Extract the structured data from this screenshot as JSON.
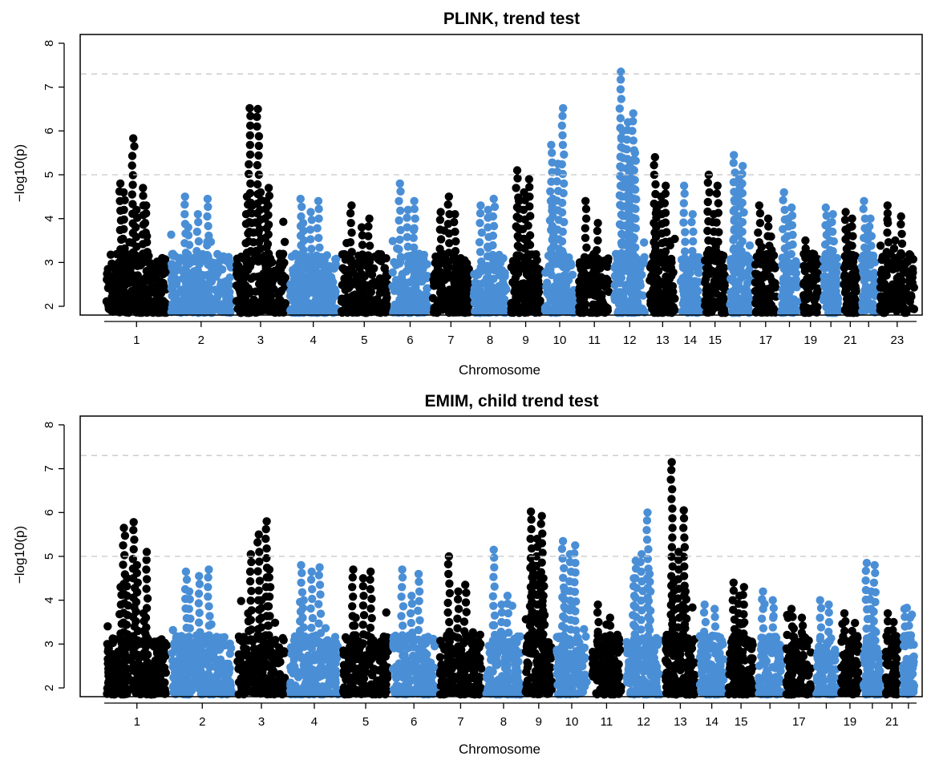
{
  "colors": {
    "odd_chromosome": "#000000",
    "even_chromosome": "#4a8fd6",
    "reference_line": "#c8c8c8"
  },
  "chart_data": [
    {
      "type": "scatter",
      "title": "PLINK, trend test",
      "xlabel": "Chromosome",
      "ylabel": "−log10(p)",
      "ylim": [
        1.8,
        8.2
      ],
      "yticks": [
        2,
        3,
        4,
        5,
        6,
        7,
        8
      ],
      "grid": false,
      "reference_lines": [
        5,
        7.3
      ],
      "chromosomes": [
        {
          "chr": 1,
          "label": "1",
          "color": "odd",
          "peaks": [
            4.8,
            4.7,
            5.83,
            4.6,
            4.3,
            4.2
          ]
        },
        {
          "chr": 2,
          "label": "2",
          "color": "even",
          "peaks": [
            4.5,
            4.45,
            4.1,
            3.8
          ]
        },
        {
          "chr": 3,
          "label": "3",
          "color": "odd",
          "peaks": [
            4.5,
            4.4,
            6.5,
            6.52,
            4.7,
            4.6,
            4.3
          ]
        },
        {
          "chr": 4,
          "label": "4",
          "color": "even",
          "peaks": [
            4.45,
            4.4,
            4.15,
            3.9
          ]
        },
        {
          "chr": 5,
          "label": "5",
          "color": "odd",
          "peaks": [
            4.3,
            4.0,
            3.8
          ]
        },
        {
          "chr": 6,
          "label": "6",
          "color": "even",
          "peaks": [
            4.8,
            4.4,
            4.2
          ]
        },
        {
          "chr": 7,
          "label": "7",
          "color": "odd",
          "peaks": [
            4.15,
            4.1,
            4.5
          ]
        },
        {
          "chr": 8,
          "label": "8",
          "color": "even",
          "peaks": [
            4.3,
            4.45,
            4.2
          ]
        },
        {
          "chr": 9,
          "label": "9",
          "color": "odd",
          "peaks": [
            5.1,
            4.9,
            4.6,
            4.4
          ]
        },
        {
          "chr": 10,
          "label": "10",
          "color": "even",
          "peaks": [
            5.68,
            6.52,
            5.25,
            4.45
          ]
        },
        {
          "chr": 11,
          "label": "11",
          "color": "odd",
          "peaks": [
            4.4,
            3.9
          ]
        },
        {
          "chr": 12,
          "label": "12",
          "color": "even",
          "peaks": [
            7.35,
            6.4,
            6.2,
            6.0,
            5.5,
            5.2,
            4.9
          ]
        },
        {
          "chr": 13,
          "label": "13",
          "color": "odd",
          "peaks": [
            5.4,
            4.75,
            4.5,
            4.2
          ]
        },
        {
          "chr": 14,
          "label": "14",
          "color": "even",
          "peaks": [
            4.75,
            4.1
          ]
        },
        {
          "chr": 15,
          "label": "15",
          "color": "odd",
          "peaks": [
            5.0,
            4.75,
            4.1
          ]
        },
        {
          "chr": 16,
          "label": "",
          "color": "even",
          "peaks": [
            5.45,
            5.2,
            4.9,
            4.6
          ]
        },
        {
          "chr": 17,
          "label": "17",
          "color": "odd",
          "peaks": [
            4.3,
            4.0
          ]
        },
        {
          "chr": 18,
          "label": "",
          "color": "even",
          "peaks": [
            4.6,
            4.25,
            4.0
          ]
        },
        {
          "chr": 19,
          "label": "19",
          "color": "odd",
          "peaks": [
            3.5,
            3.2
          ]
        },
        {
          "chr": 20,
          "label": "",
          "color": "even",
          "peaks": [
            4.25,
            4.1,
            3.9
          ]
        },
        {
          "chr": 21,
          "label": "21",
          "color": "odd",
          "peaks": [
            4.15,
            4.0,
            3.8
          ]
        },
        {
          "chr": 22,
          "label": "",
          "color": "even",
          "peaks": [
            4.4,
            4.0,
            3.7
          ]
        },
        {
          "chr": 23,
          "label": "23",
          "color": "odd",
          "peaks": [
            4.3,
            4.05,
            3.5
          ]
        }
      ]
    },
    {
      "type": "scatter",
      "title": "EMIM, child trend test",
      "xlabel": "Chromosome",
      "ylabel": "−log10(p)",
      "ylim": [
        1.8,
        8.2
      ],
      "yticks": [
        2,
        3,
        4,
        5,
        6,
        7,
        8
      ],
      "grid": false,
      "reference_lines": [
        5,
        7.3
      ],
      "chromosomes": [
        {
          "chr": 1,
          "label": "1",
          "color": "odd",
          "peaks": [
            4.3,
            3.7,
            5.78,
            5.65,
            5.1,
            4.8,
            4.5
          ]
        },
        {
          "chr": 2,
          "label": "2",
          "color": "even",
          "peaks": [
            4.65,
            4.7,
            4.55,
            4.2
          ]
        },
        {
          "chr": 3,
          "label": "3",
          "color": "odd",
          "peaks": [
            3.7,
            5.8,
            5.5,
            5.05,
            4.7,
            4.0
          ]
        },
        {
          "chr": 4,
          "label": "4",
          "color": "even",
          "peaks": [
            4.8,
            4.75,
            4.65,
            4.0
          ]
        },
        {
          "chr": 5,
          "label": "5",
          "color": "odd",
          "peaks": [
            4.7,
            4.65,
            4.5,
            3.6
          ]
        },
        {
          "chr": 6,
          "label": "6",
          "color": "even",
          "peaks": [
            4.7,
            4.6,
            4.1
          ]
        },
        {
          "chr": 7,
          "label": "7",
          "color": "odd",
          "peaks": [
            5.0,
            4.35,
            4.2
          ]
        },
        {
          "chr": 8,
          "label": "8",
          "color": "even",
          "peaks": [
            5.15,
            4.1,
            3.9
          ]
        },
        {
          "chr": 9,
          "label": "9",
          "color": "odd",
          "peaks": [
            6.02,
            5.92,
            5.4,
            4.8,
            4.5
          ]
        },
        {
          "chr": 10,
          "label": "10",
          "color": "even",
          "peaks": [
            5.35,
            5.25,
            5.05,
            4.2
          ]
        },
        {
          "chr": 11,
          "label": "11",
          "color": "odd",
          "peaks": [
            3.9,
            3.6
          ]
        },
        {
          "chr": 12,
          "label": "12",
          "color": "even",
          "peaks": [
            4.5,
            6.0,
            5.05,
            4.9,
            4.6
          ]
        },
        {
          "chr": 13,
          "label": "13",
          "color": "odd",
          "peaks": [
            7.15,
            6.05,
            5.1,
            4.4,
            4.2
          ]
        },
        {
          "chr": 14,
          "label": "14",
          "color": "even",
          "peaks": [
            3.9,
            3.8
          ]
        },
        {
          "chr": 15,
          "label": "15",
          "color": "odd",
          "peaks": [
            4.4,
            4.3,
            4.1
          ]
        },
        {
          "chr": 16,
          "label": "",
          "color": "even",
          "peaks": [
            4.2,
            4.0
          ]
        },
        {
          "chr": 17,
          "label": "17",
          "color": "odd",
          "peaks": [
            3.8,
            3.6
          ]
        },
        {
          "chr": 18,
          "label": "",
          "color": "even",
          "peaks": [
            4.0,
            3.9
          ]
        },
        {
          "chr": 19,
          "label": "19",
          "color": "odd",
          "peaks": [
            3.7,
            3.3
          ]
        },
        {
          "chr": 20,
          "label": "",
          "color": "even",
          "peaks": [
            4.85,
            4.8,
            4.2
          ]
        },
        {
          "chr": 21,
          "label": "21",
          "color": "odd",
          "peaks": [
            3.7,
            3.5
          ]
        },
        {
          "chr": 22,
          "label": "",
          "color": "even",
          "peaks": [
            3.8,
            3.6
          ]
        }
      ]
    }
  ]
}
